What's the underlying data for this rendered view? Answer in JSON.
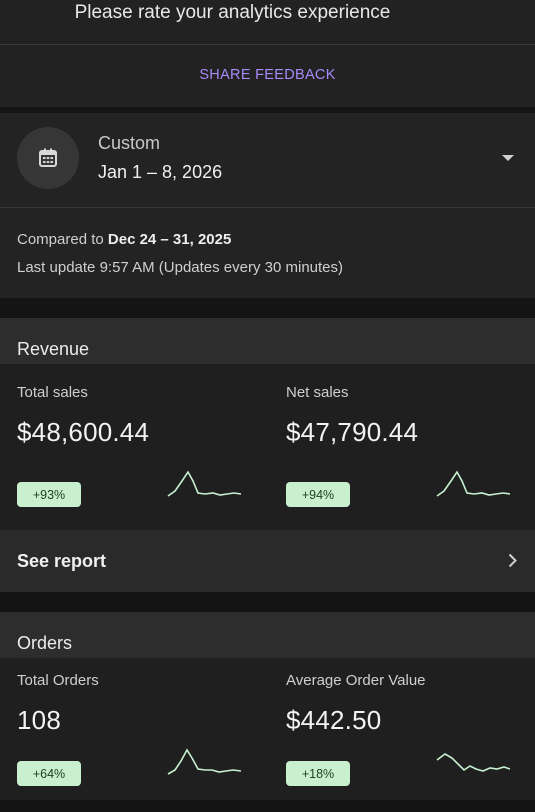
{
  "feedback": {
    "title": "Please rate your analytics experience",
    "share_label": "SHARE FEEDBACK"
  },
  "date_range": {
    "label": "Custom",
    "value": "Jan 1 – 8, 2026",
    "compared_prefix": "Compared to ",
    "compared_range": "Dec 24 – 31, 2025",
    "last_update": "Last update 9:57 AM (Updates every 30 minutes)",
    "icons": {
      "calendar": "calendar-icon",
      "dropdown": "caret-down-icon"
    }
  },
  "revenue": {
    "header": "Revenue",
    "metrics": [
      {
        "label": "Total sales",
        "value": "$48,600.44",
        "change": "+93%"
      },
      {
        "label": "Net sales",
        "value": "$47,790.44",
        "change": "+94%"
      }
    ],
    "see_report": "See report"
  },
  "orders": {
    "header": "Orders",
    "metrics": [
      {
        "label": "Total Orders",
        "value": "108",
        "change": "+64%"
      },
      {
        "label": "Average Order Value",
        "value": "$442.50",
        "change": "+18%"
      }
    ]
  },
  "colors": {
    "accent": "#a78bfa",
    "badge_bg": "#c8f0cf",
    "sparkline": "#c8f0cf"
  }
}
